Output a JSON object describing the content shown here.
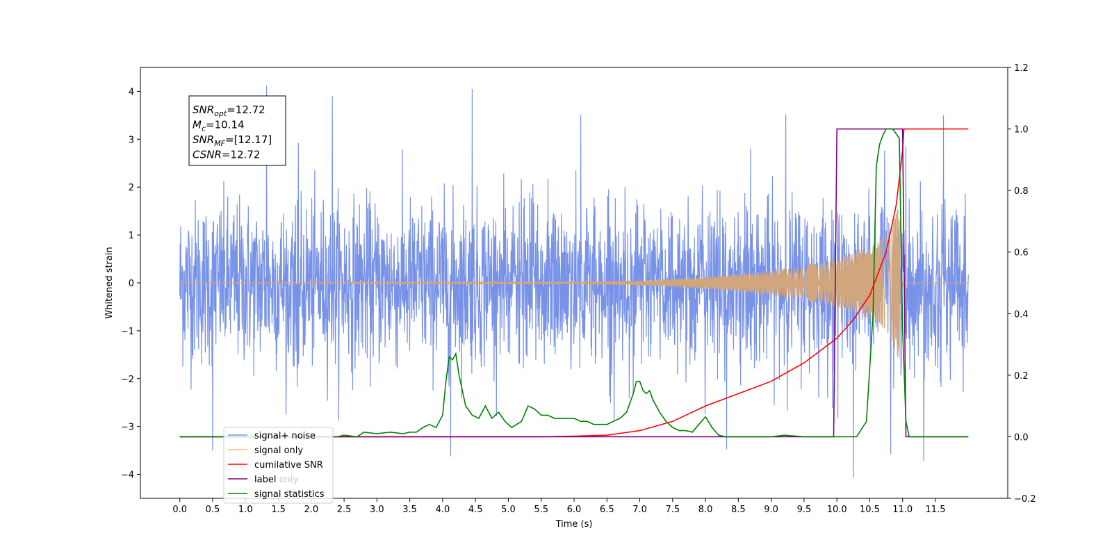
{
  "chart_data": {
    "type": "line",
    "xlabel": "Time (s)",
    "ylabel_left": "Whitened strain",
    "ylabel_right": "",
    "xlim": [
      -0.6,
      12.6
    ],
    "ylim_left": [
      -4.5,
      4.5
    ],
    "ylim_right": [
      -0.2,
      1.2
    ],
    "x_ticks": [
      "0.0",
      "0.5",
      "1.0",
      "1.5",
      "2.0",
      "2.5",
      "3.0",
      "3.5",
      "4.0",
      "4.5",
      "5.0",
      "5.5",
      "6.0",
      "6.5",
      "7.0",
      "7.5",
      "8.0",
      "8.5",
      "9.0",
      "9.5",
      "10.0",
      "10.5",
      "11.0",
      "11.5"
    ],
    "y_ticks_left": [
      "4",
      "3",
      "2",
      "1",
      "0",
      "−1",
      "−2",
      "−3",
      "−4"
    ],
    "y_ticks_right": [
      "1.2",
      "1.0",
      "0.8",
      "0.6",
      "0.4",
      "0.2",
      "0.0",
      "−0.2"
    ],
    "grid": false,
    "legend_position": "bottom-left",
    "legend": [
      {
        "label": "signal+ noise",
        "color": "#7892e8"
      },
      {
        "label": "signal only",
        "color": "#f5c27a"
      },
      {
        "label": "cumilative SNR",
        "color": "#ff0000"
      },
      {
        "label": "label",
        "color": "#800080"
      },
      {
        "label": "signal statistics",
        "color": "#008000"
      }
    ],
    "ghost_legend_label": "label only",
    "stats_box": {
      "lines": [
        {
          "sym": "SNR",
          "sub": "opt",
          "val": "=12.72"
        },
        {
          "sym": "M",
          "sub": "c",
          "val": "=10.14"
        },
        {
          "sym": "SNR",
          "sub": "MF",
          "val": "=[12.17]"
        },
        {
          "sym": "CSNR",
          "sub": "",
          "val": "=12.72"
        }
      ]
    },
    "series": [
      {
        "name": "signal+ noise",
        "axis": "left",
        "color": "#7892e8",
        "description": "dense gaussian noise envelope",
        "x_range": [
          0.0,
          12.0
        ],
        "envelope_typical": [
          -2.2,
          2.2
        ],
        "peaks": [
          [
            1.32,
            4.12
          ],
          [
            4.45,
            4.05
          ],
          [
            2.32,
            3.9
          ],
          [
            6.1,
            3.5
          ],
          [
            9.22,
            3.52
          ],
          [
            11.62,
            3.5
          ],
          [
            10.25,
            -4.07
          ],
          [
            11.32,
            -3.72
          ],
          [
            4.12,
            -3.62
          ],
          [
            0.5,
            -3.5
          ],
          [
            10.82,
            -3.58
          ],
          [
            8.32,
            -3.48
          ]
        ]
      },
      {
        "name": "signal only",
        "axis": "left",
        "color": "#d2a67c",
        "description": "chirp waveform growing to merger near 11.0 s",
        "x_range": [
          0.0,
          12.0
        ],
        "merger_time": 11.0,
        "amplitude_points": [
          [
            0.0,
            0.0
          ],
          [
            6.0,
            0.02
          ],
          [
            7.0,
            0.05
          ],
          [
            8.0,
            0.12
          ],
          [
            9.0,
            0.25
          ],
          [
            9.5,
            0.35
          ],
          [
            10.0,
            0.5
          ],
          [
            10.5,
            0.75
          ],
          [
            10.8,
            1.05
          ],
          [
            10.95,
            1.65
          ],
          [
            11.0,
            0.0
          ],
          [
            12.0,
            0.0
          ]
        ]
      },
      {
        "name": "cumilative SNR",
        "axis": "right",
        "color": "#ff0000",
        "x": [
          0.0,
          5.5,
          6.0,
          6.5,
          7.0,
          7.5,
          8.0,
          8.5,
          9.0,
          9.5,
          10.0,
          10.25,
          10.5,
          10.75,
          10.9,
          11.0,
          11.02,
          12.0
        ],
        "y": [
          0.0,
          0.0,
          0.002,
          0.005,
          0.02,
          0.05,
          0.1,
          0.14,
          0.18,
          0.24,
          0.32,
          0.38,
          0.46,
          0.6,
          0.75,
          0.93,
          1.0,
          1.0
        ]
      },
      {
        "name": "label",
        "axis": "right",
        "color": "#800080",
        "x": [
          0.0,
          9.95,
          10.0,
          11.0,
          11.05,
          12.0
        ],
        "y": [
          0.0,
          0.0,
          1.0,
          1.0,
          0.0,
          0.0
        ]
      },
      {
        "name": "signal statistics",
        "axis": "right",
        "color": "#008000",
        "x": [
          0.0,
          2.4,
          2.5,
          2.7,
          2.8,
          3.0,
          3.2,
          3.4,
          3.5,
          3.6,
          3.7,
          3.8,
          3.9,
          4.0,
          4.05,
          4.1,
          4.15,
          4.2,
          4.25,
          4.35,
          4.45,
          4.55,
          4.65,
          4.75,
          4.85,
          4.95,
          5.05,
          5.2,
          5.3,
          5.4,
          5.5,
          5.6,
          5.7,
          5.8,
          5.9,
          6.0,
          6.1,
          6.2,
          6.3,
          6.4,
          6.5,
          6.6,
          6.7,
          6.8,
          6.9,
          6.95,
          7.0,
          7.05,
          7.1,
          7.15,
          7.2,
          7.3,
          7.4,
          7.5,
          7.6,
          7.7,
          7.8,
          7.9,
          8.0,
          8.1,
          8.2,
          8.3,
          9.0,
          9.2,
          9.5,
          10.0,
          10.3,
          10.45,
          10.55,
          10.6,
          10.65,
          10.7,
          10.75,
          10.85,
          10.95,
          11.0,
          11.05,
          11.1,
          12.0
        ],
        "y": [
          0.0,
          0.0,
          0.005,
          0.0,
          0.015,
          0.01,
          0.015,
          0.01,
          0.015,
          0.015,
          0.03,
          0.04,
          0.03,
          0.07,
          0.18,
          0.26,
          0.25,
          0.27,
          0.2,
          0.1,
          0.07,
          0.06,
          0.1,
          0.06,
          0.08,
          0.05,
          0.03,
          0.05,
          0.1,
          0.09,
          0.07,
          0.07,
          0.06,
          0.06,
          0.06,
          0.06,
          0.05,
          0.05,
          0.04,
          0.04,
          0.04,
          0.05,
          0.06,
          0.08,
          0.14,
          0.18,
          0.18,
          0.15,
          0.14,
          0.15,
          0.12,
          0.08,
          0.05,
          0.03,
          0.02,
          0.02,
          0.015,
          0.04,
          0.065,
          0.03,
          0.005,
          0.0,
          0.0,
          0.005,
          0.0,
          0.0,
          0.0,
          0.05,
          0.4,
          0.88,
          0.95,
          0.98,
          1.0,
          1.0,
          0.97,
          0.35,
          0.05,
          0.0,
          0.0
        ]
      }
    ]
  }
}
